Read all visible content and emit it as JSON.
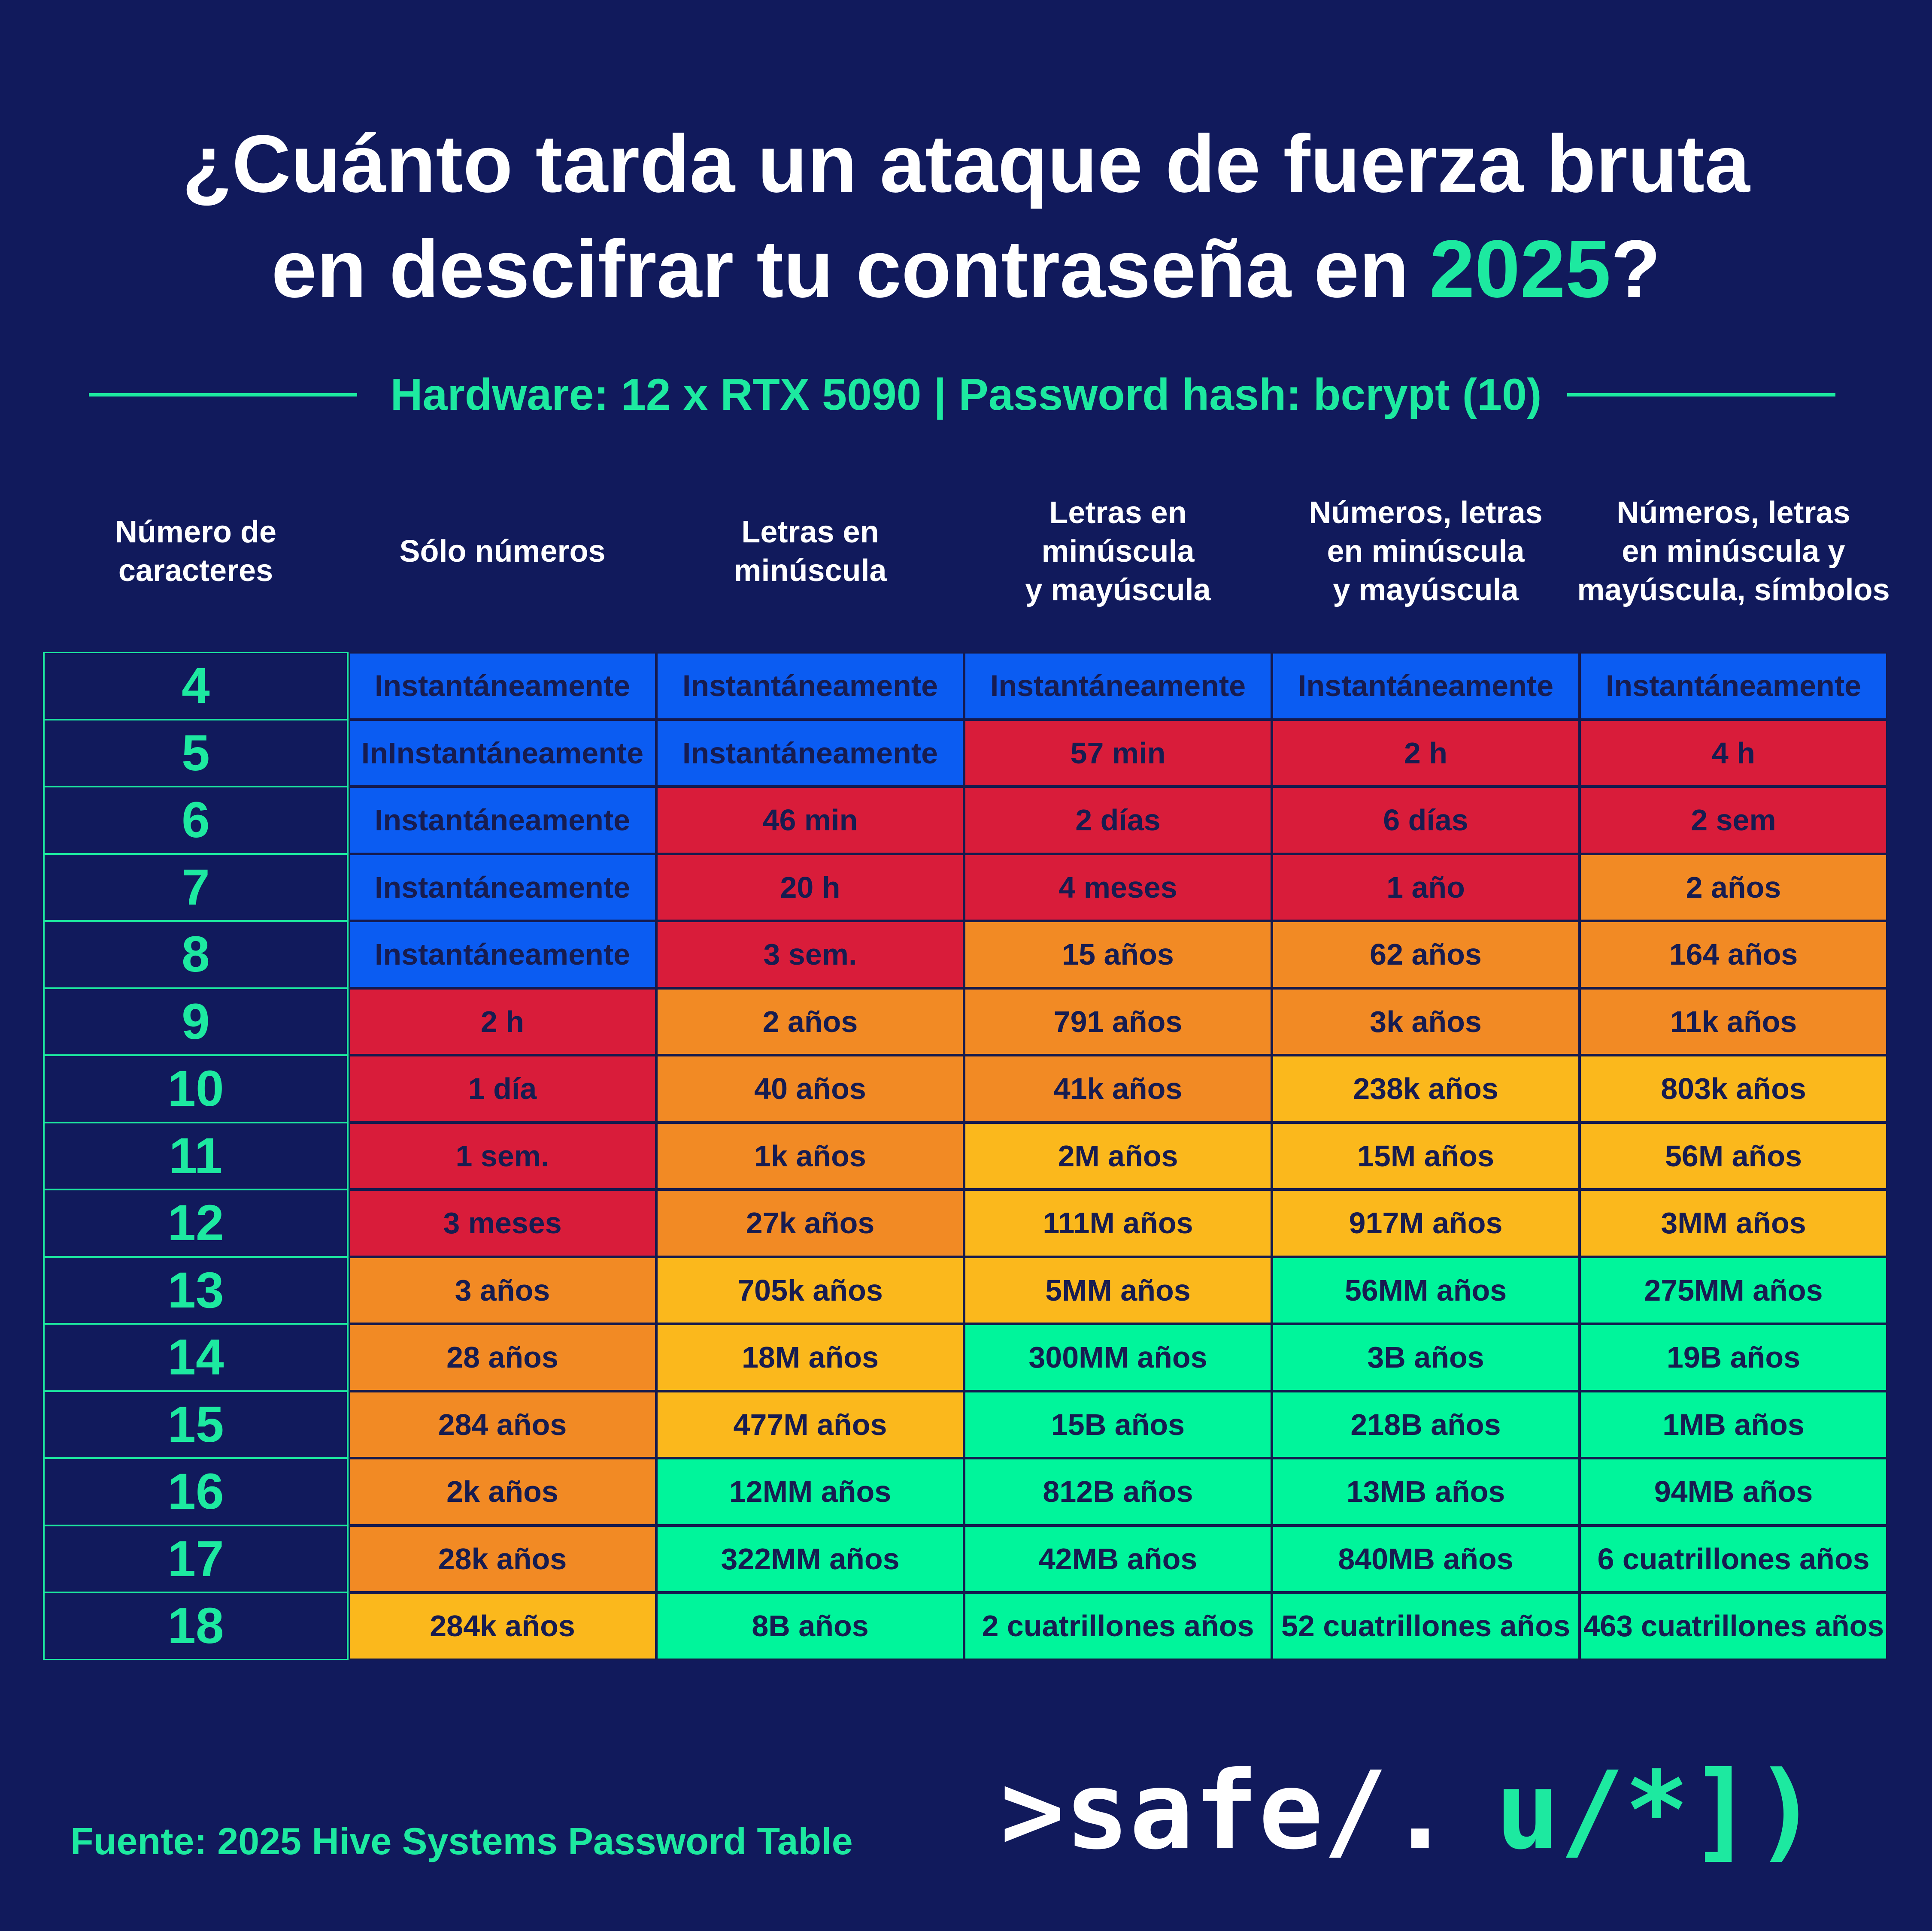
{
  "title": {
    "line1": "¿Cuánto tarda un ataque de fuerza bruta",
    "line2": "en descifrar tu contraseña en",
    "highlight": "2025",
    "end": "?"
  },
  "subtitle": "Hardware: 12 x RTX 5090 | Password hash: bcrypt (10)",
  "table": {
    "headers": [
      [
        "Número de",
        "caracteres"
      ],
      [
        "Sólo números"
      ],
      [
        "Letras en",
        "minúscula"
      ],
      [
        "Letras en",
        "minúscula",
        "y mayúscula"
      ],
      [
        "Números, letras",
        "en minúscula",
        "y mayúscula"
      ],
      [
        "Números, letras",
        "en  minúscula y",
        "mayúscula, símbolos"
      ]
    ],
    "rows": [
      {
        "chars": "4",
        "cells": [
          "Instantáneamente",
          "Instantáneamente",
          "Instantáneamente",
          "Instantáneamente",
          "Instantáneamente"
        ],
        "colors": [
          "#0b5cf2",
          "#0b5cf2",
          "#0b5cf2",
          "#0b5cf2",
          "#0b5cf2"
        ]
      },
      {
        "chars": "5",
        "cells": [
          "InInstantáneamente",
          "Instantáneamente",
          "57 min",
          "2 h",
          "4 h"
        ],
        "colors": [
          "#0b5cf2",
          "#0b5cf2",
          "#d91c3a",
          "#d91c3a",
          "#d91c3a"
        ]
      },
      {
        "chars": "6",
        "cells": [
          "Instantáneamente",
          "46 min",
          "2 días",
          "6 días",
          "2 sem"
        ],
        "colors": [
          "#0b5cf2",
          "#d91c3a",
          "#d91c3a",
          "#d91c3a",
          "#d91c3a"
        ]
      },
      {
        "chars": "7",
        "cells": [
          "Instantáneamente",
          "20 h",
          "4 meses",
          "1 año",
          "2 años"
        ],
        "colors": [
          "#0b5cf2",
          "#d91c3a",
          "#d91c3a",
          "#d91c3a",
          "#f28a24"
        ]
      },
      {
        "chars": "8",
        "cells": [
          "Instantáneamente",
          "3 sem.",
          "15 años",
          "62 años",
          "164 años"
        ],
        "colors": [
          "#0b5cf2",
          "#d91c3a",
          "#f28a24",
          "#f28a24",
          "#f28a24"
        ]
      },
      {
        "chars": "9",
        "cells": [
          "2 h",
          "2 años",
          "791 años",
          "3k años",
          "11k años"
        ],
        "colors": [
          "#d91c3a",
          "#f28a24",
          "#f28a24",
          "#f28a24",
          "#f28a24"
        ]
      },
      {
        "chars": "10",
        "cells": [
          "1 día",
          "40 años",
          "41k años",
          "238k años",
          "803k años"
        ],
        "colors": [
          "#d91c3a",
          "#f28a24",
          "#f28a24",
          "#fbb81c",
          "#fbb81c"
        ]
      },
      {
        "chars": "11",
        "cells": [
          "1 sem.",
          "1k años",
          "2M años",
          "15M años",
          "56M años"
        ],
        "colors": [
          "#d91c3a",
          "#f28a24",
          "#fbb81c",
          "#fbb81c",
          "#fbb81c"
        ]
      },
      {
        "chars": "12",
        "cells": [
          "3 meses",
          "27k años",
          "111M años",
          "917M años",
          "3MM años"
        ],
        "colors": [
          "#d91c3a",
          "#f28a24",
          "#fbb81c",
          "#fbb81c",
          "#fbb81c"
        ]
      },
      {
        "chars": "13",
        "cells": [
          "3 años",
          "705k años",
          "5MM años",
          "56MM años",
          "275MM años"
        ],
        "colors": [
          "#f28a24",
          "#fbb81c",
          "#fbb81c",
          "#00f59b",
          "#00f59b"
        ]
      },
      {
        "chars": "14",
        "cells": [
          "28 años",
          "18M años",
          "300MM años",
          "3B años",
          "19B años"
        ],
        "colors": [
          "#f28a24",
          "#fbb81c",
          "#00f59b",
          "#00f59b",
          "#00f59b"
        ]
      },
      {
        "chars": "15",
        "cells": [
          "284 años",
          "477M años",
          "15B años",
          "218B años",
          "1MB años"
        ],
        "colors": [
          "#f28a24",
          "#fbb81c",
          "#00f59b",
          "#00f59b",
          "#00f59b"
        ]
      },
      {
        "chars": "16",
        "cells": [
          "2k años",
          "12MM años",
          "812B años",
          "13MB años",
          "94MB años"
        ],
        "colors": [
          "#f28a24",
          "#00f59b",
          "#00f59b",
          "#00f59b",
          "#00f59b"
        ]
      },
      {
        "chars": "17",
        "cells": [
          "28k años",
          "322MM años",
          "42MB años",
          "840MB años",
          "6 cuatrillones años"
        ],
        "colors": [
          "#f28a24",
          "#00f59b",
          "#00f59b",
          "#00f59b",
          "#00f59b"
        ]
      },
      {
        "chars": "18",
        "cells": [
          "284k años",
          "8B años",
          "2 cuatrillones años",
          "52 cuatrillones años",
          "463 cuatrillones años"
        ],
        "colors": [
          "#fbb81c",
          "#00f59b",
          "#00f59b",
          "#00f59b",
          "#00f59b"
        ]
      }
    ]
  },
  "footer": {
    "source": "Fuente: 2025 Hive Systems Password Table",
    "logo_left": ">safe/.",
    "logo_right": "u/*])"
  }
}
